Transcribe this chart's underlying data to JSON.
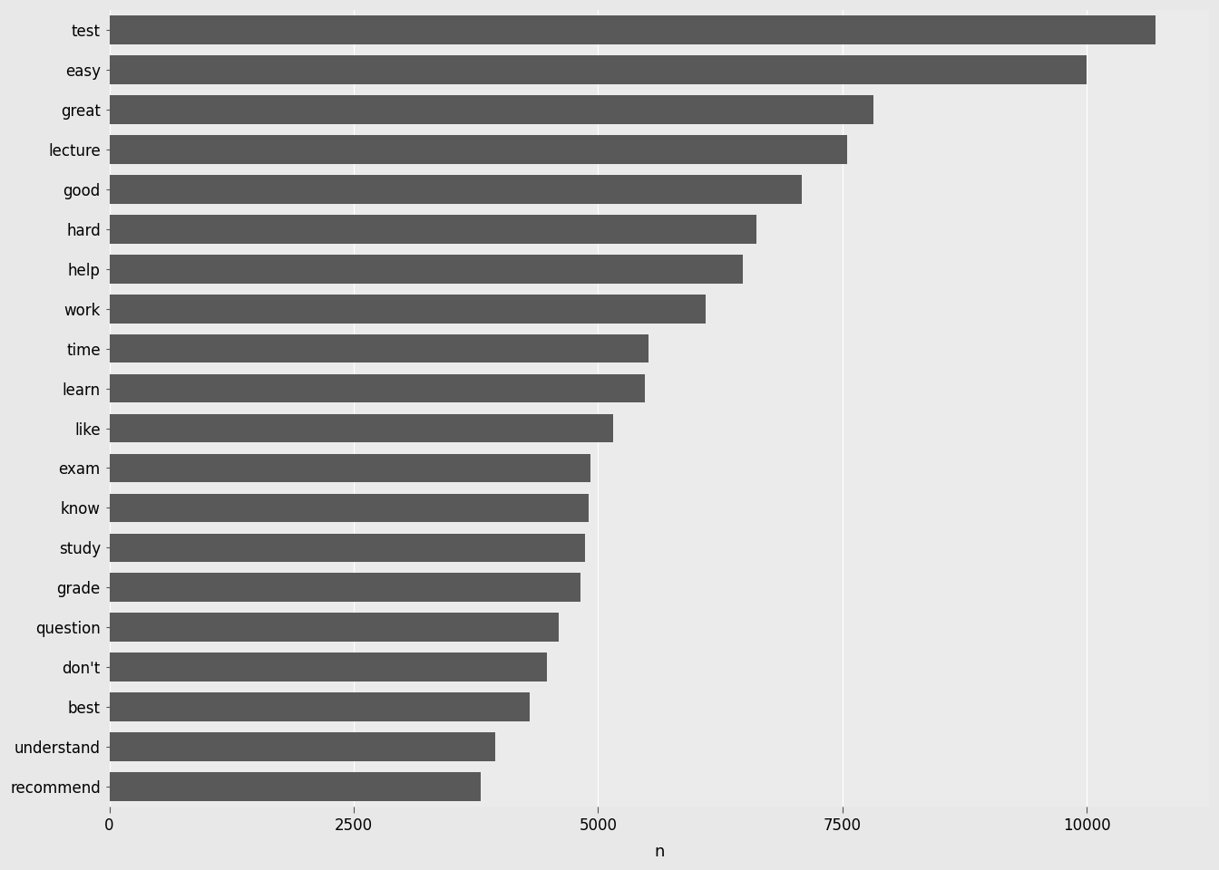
{
  "categories": [
    "recommend",
    "understand",
    "best",
    "don't",
    "question",
    "grade",
    "study",
    "know",
    "exam",
    "like",
    "learn",
    "time",
    "work",
    "help",
    "hard",
    "good",
    "lecture",
    "great",
    "easy",
    "test"
  ],
  "values": [
    3800,
    3950,
    4300,
    4480,
    4600,
    4820,
    4870,
    4900,
    4920,
    5150,
    5480,
    5520,
    6100,
    6480,
    6620,
    7080,
    7550,
    7820,
    10000,
    10700
  ],
  "bar_color": "#595959",
  "outer_background": "#e8e8e8",
  "panel_background": "#ebebeb",
  "xlabel": "n",
  "xlabel_fontsize": 13,
  "tick_label_fontsize": 12,
  "xlim_max": 11250,
  "xticks": [
    0,
    2500,
    5000,
    7500,
    10000
  ],
  "grid_color": "#ffffff",
  "grid_linewidth": 0.8,
  "bar_height": 0.72
}
